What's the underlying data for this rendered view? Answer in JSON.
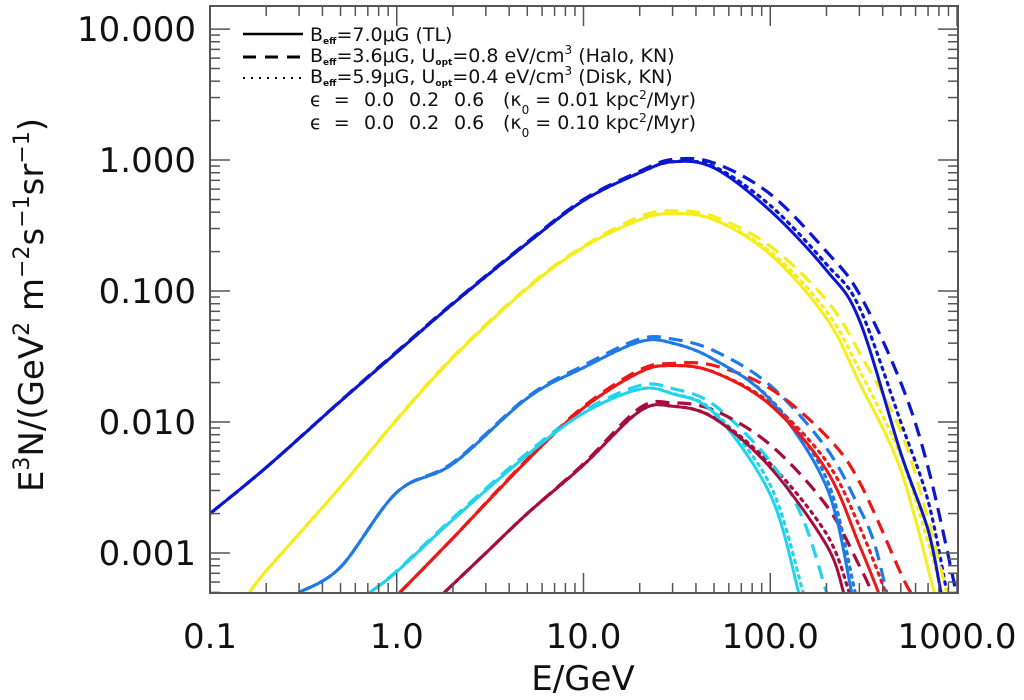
{
  "chart_data": {
    "type": "line",
    "title": "",
    "xlabel": "E/GeV",
    "ylabel": {
      "main": "E",
      "sup1": "3",
      "mid": "N/(GeV",
      "sup2": "2",
      "m": " m",
      "sup3": "−2",
      "s": "s",
      "sup4": "−1",
      "sr": "sr",
      "sup5": "−1",
      "close": ")"
    },
    "x_scale": "log",
    "y_scale": "log",
    "xlim": [
      0.1,
      1000
    ],
    "ylim": [
      0.000495,
      15
    ],
    "grid": false,
    "x_ticks": [
      {
        "value": 0.1,
        "label": "0.1"
      },
      {
        "value": 1,
        "label": "1.0"
      },
      {
        "value": 10,
        "label": "10.0"
      },
      {
        "value": 100,
        "label": "100.0"
      },
      {
        "value": 1000,
        "label": "1000.0"
      }
    ],
    "y_ticks": [
      {
        "value": 0.001,
        "label": "0.001"
      },
      {
        "value": 0.01,
        "label": "0.010"
      },
      {
        "value": 0.1,
        "label": "0.100"
      },
      {
        "value": 1,
        "label": "1.000"
      },
      {
        "value": 10,
        "label": "10.000"
      }
    ],
    "legend": {
      "placement": "top-left",
      "styles": [
        {
          "style": "solid",
          "b_label": "B",
          "b_sub": "eff",
          "text": "=7.0μG (TL)"
        },
        {
          "style": "dashed",
          "b_label": "B",
          "b_sub": "eff",
          "text": "=3.6μG, U",
          "u_sub": "opt",
          "text2": "=0.8 eV/cm",
          "sup": "3",
          "text3": " (Halo, KN)"
        },
        {
          "style": "dotted",
          "b_label": "B",
          "b_sub": "eff",
          "text": "=5.9μG, U",
          "u_sub": "opt",
          "text2": "=0.4 eV/cm",
          "sup": "3",
          "text3": " (Disk, KN)"
        }
      ],
      "eps_rows": [
        {
          "prefix": "ϵ  =  ",
          "values": [
            {
              "label": "0.0",
              "color": "#22d3ee"
            },
            {
              "label": "0.2",
              "color": "#1f7ae6"
            },
            {
              "label": "0.6",
              "color": "#0b16d0"
            }
          ],
          "kappa_text": "(κ",
          "kappa_sub": "0",
          "kappa_val": " = 0.01 kpc",
          "kappa_sup": "2",
          "kappa_unit": "/Myr)"
        },
        {
          "prefix": "ϵ  =  ",
          "values": [
            {
              "label": "0.0",
              "color": "#a50d3d"
            },
            {
              "label": "0.2",
              "color": "#ec1717"
            },
            {
              "label": "0.6",
              "color": "#f5ee1c"
            }
          ],
          "kappa_text": "(κ",
          "kappa_sub": "0",
          "kappa_val": " = 0.10 kpc",
          "kappa_sup": "2",
          "kappa_unit": "/Myr)"
        }
      ]
    },
    "series": [
      {
        "name": "eps0.6-k0.01-TL",
        "color": "#0b16d0",
        "style": "solid",
        "x": [
          0.1,
          0.2,
          0.5,
          1,
          2,
          5,
          10,
          20,
          30,
          50,
          100,
          200,
          300,
          500,
          700,
          820
        ],
        "y": [
          0.002,
          0.0045,
          0.0144,
          0.034,
          0.08,
          0.232,
          0.49,
          0.8,
          0.97,
          0.87,
          0.41,
          0.144,
          0.06,
          0.0058,
          0.0015,
          0.0005
        ]
      },
      {
        "name": "eps0.6-k0.01-Halo",
        "color": "#0b16d0",
        "style": "dashed",
        "x": [
          0.1,
          0.2,
          0.5,
          1,
          2,
          5,
          10,
          20,
          30,
          50,
          100,
          200,
          300,
          500,
          700,
          990
        ],
        "y": [
          0.002,
          0.0045,
          0.0145,
          0.0345,
          0.081,
          0.236,
          0.5,
          0.82,
          1.01,
          0.95,
          0.55,
          0.2,
          0.095,
          0.02,
          0.0045,
          0.0005
        ]
      },
      {
        "name": "eps0.6-k0.01-Disk",
        "color": "#0b16d0",
        "style": "dotted",
        "x": [
          0.1,
          0.2,
          0.5,
          1,
          2,
          5,
          10,
          20,
          30,
          50,
          100,
          200,
          300,
          500,
          700,
          883
        ],
        "y": [
          0.002,
          0.0045,
          0.0144,
          0.034,
          0.08,
          0.232,
          0.49,
          0.8,
          0.97,
          0.89,
          0.45,
          0.16,
          0.075,
          0.01,
          0.0025,
          0.0005
        ]
      },
      {
        "name": "eps0.6-k0.10-TL",
        "color": "#f5ee1c",
        "style": "solid",
        "x": [
          0.163,
          0.2,
          0.5,
          1,
          2,
          5,
          10,
          20,
          30,
          50,
          100,
          200,
          300,
          500,
          755
        ],
        "y": [
          0.0005,
          0.00073,
          0.0032,
          0.0104,
          0.031,
          0.105,
          0.216,
          0.35,
          0.39,
          0.35,
          0.19,
          0.062,
          0.02,
          0.0043,
          0.0005
        ]
      },
      {
        "name": "eps0.6-k0.10-Halo",
        "color": "#f5ee1c",
        "style": "dashed",
        "x": [
          0.163,
          0.2,
          0.5,
          1,
          2,
          5,
          10,
          20,
          30,
          50,
          100,
          200,
          300,
          500,
          700,
          880
        ],
        "y": [
          0.0005,
          0.00073,
          0.0032,
          0.0105,
          0.0315,
          0.107,
          0.22,
          0.37,
          0.41,
          0.37,
          0.22,
          0.085,
          0.034,
          0.0085,
          0.0018,
          0.0005
        ]
      },
      {
        "name": "eps0.6-k0.10-Disk",
        "color": "#f5ee1c",
        "style": "dotted",
        "x": [
          0.163,
          0.2,
          0.5,
          1,
          2,
          5,
          10,
          20,
          30,
          50,
          100,
          200,
          300,
          500,
          700,
          830
        ],
        "y": [
          0.0005,
          0.00073,
          0.0032,
          0.0104,
          0.031,
          0.105,
          0.216,
          0.35,
          0.39,
          0.35,
          0.2,
          0.07,
          0.025,
          0.0055,
          0.0012,
          0.0005
        ]
      },
      {
        "name": "eps0.2-k0.01-TL",
        "color": "#1f7ae6",
        "style": "solid",
        "x": [
          0.3,
          0.5,
          1,
          2,
          5,
          10,
          20,
          30,
          50,
          100,
          200,
          273
        ],
        "y": [
          0.0005,
          0.00078,
          0.0029,
          0.0048,
          0.0152,
          0.026,
          0.041,
          0.04,
          0.03,
          0.0147,
          0.0032,
          0.0005
        ]
      },
      {
        "name": "eps0.2-k0.01-Halo",
        "color": "#1f7ae6",
        "style": "dashed",
        "x": [
          0.3,
          0.5,
          1,
          2,
          5,
          10,
          20,
          30,
          50,
          100,
          200,
          300,
          360,
          420
        ],
        "y": [
          0.0005,
          0.00078,
          0.0029,
          0.0049,
          0.0155,
          0.027,
          0.043,
          0.043,
          0.035,
          0.019,
          0.0063,
          0.0022,
          0.0012,
          0.0005
        ]
      },
      {
        "name": "eps0.2-k0.01-Disk",
        "color": "#1f7ae6",
        "style": "dotted",
        "x": [
          0.3,
          0.5,
          1,
          2,
          5,
          10,
          20,
          30,
          50,
          100,
          200,
          285
        ],
        "y": [
          0.0005,
          0.00078,
          0.0029,
          0.0048,
          0.0152,
          0.026,
          0.041,
          0.04,
          0.03,
          0.015,
          0.0037,
          0.0005
        ]
      },
      {
        "name": "eps0.2-k0.10-TL",
        "color": "#ec1717",
        "style": "solid",
        "x": [
          1.04,
          2,
          5,
          10,
          20,
          30,
          50,
          100,
          200,
          300,
          380
        ],
        "y": [
          0.0005,
          0.0013,
          0.0051,
          0.0128,
          0.024,
          0.027,
          0.024,
          0.0135,
          0.0043,
          0.00115,
          0.0005
        ]
      },
      {
        "name": "eps0.2-k0.10-Halo",
        "color": "#ec1717",
        "style": "dashed",
        "x": [
          1.04,
          2,
          5,
          10,
          20,
          30,
          50,
          100,
          200,
          300,
          500,
          565
        ],
        "y": [
          0.0005,
          0.0013,
          0.0052,
          0.0131,
          0.025,
          0.028,
          0.027,
          0.018,
          0.0078,
          0.0035,
          0.0007,
          0.0005
        ]
      },
      {
        "name": "eps0.2-k0.10-Disk",
        "color": "#ec1717",
        "style": "dotted",
        "x": [
          1.04,
          2,
          5,
          10,
          20,
          30,
          50,
          100,
          200,
          300,
          415
        ],
        "y": [
          0.0005,
          0.0013,
          0.0051,
          0.0128,
          0.024,
          0.027,
          0.024,
          0.014,
          0.005,
          0.0016,
          0.0005
        ]
      },
      {
        "name": "eps0.0-k0.01-TL",
        "color": "#22d3ee",
        "style": "solid",
        "x": [
          0.72,
          1,
          2,
          5,
          10,
          20,
          30,
          50,
          100,
          142
        ],
        "y": [
          0.0005,
          0.00072,
          0.0018,
          0.0056,
          0.0117,
          0.0178,
          0.0164,
          0.0117,
          0.0028,
          0.0005
        ]
      },
      {
        "name": "eps0.0-k0.01-Halo",
        "color": "#22d3ee",
        "style": "dashed",
        "x": [
          0.72,
          1,
          2,
          5,
          10,
          20,
          30,
          50,
          100,
          150,
          200
        ],
        "y": [
          0.0005,
          0.00073,
          0.00185,
          0.0058,
          0.0121,
          0.019,
          0.018,
          0.0135,
          0.005,
          0.0018,
          0.0005
        ]
      },
      {
        "name": "eps0.0-k0.01-Disk",
        "color": "#22d3ee",
        "style": "dotted",
        "x": [
          0.72,
          1,
          2,
          5,
          10,
          20,
          30,
          50,
          100,
          150
        ],
        "y": [
          0.0005,
          0.00072,
          0.0018,
          0.0056,
          0.0117,
          0.0178,
          0.0165,
          0.012,
          0.0033,
          0.0005
        ]
      },
      {
        "name": "eps0.0-k0.10-TL",
        "color": "#a50d3d",
        "style": "solid",
        "x": [
          1.8,
          3,
          5,
          10,
          20,
          30,
          50,
          100,
          200,
          247
        ],
        "y": [
          0.0005,
          0.001,
          0.002,
          0.0047,
          0.0121,
          0.0132,
          0.0107,
          0.0045,
          0.00115,
          0.0005
        ]
      },
      {
        "name": "eps0.0-k0.10-Halo",
        "color": "#a50d3d",
        "style": "dashed",
        "x": [
          1.8,
          3,
          5,
          10,
          20,
          30,
          50,
          100,
          200,
          300,
          350
        ],
        "y": [
          0.0005,
          0.001,
          0.002,
          0.0048,
          0.0128,
          0.014,
          0.0123,
          0.0067,
          0.0023,
          0.0008,
          0.0005
        ]
      },
      {
        "name": "eps0.0-k0.10-Disk",
        "color": "#a50d3d",
        "style": "dotted",
        "x": [
          1.8,
          3,
          5,
          10,
          20,
          30,
          50,
          100,
          200,
          265
        ],
        "y": [
          0.0005,
          0.001,
          0.002,
          0.0047,
          0.0121,
          0.0132,
          0.0108,
          0.0048,
          0.0014,
          0.0005
        ]
      }
    ]
  }
}
